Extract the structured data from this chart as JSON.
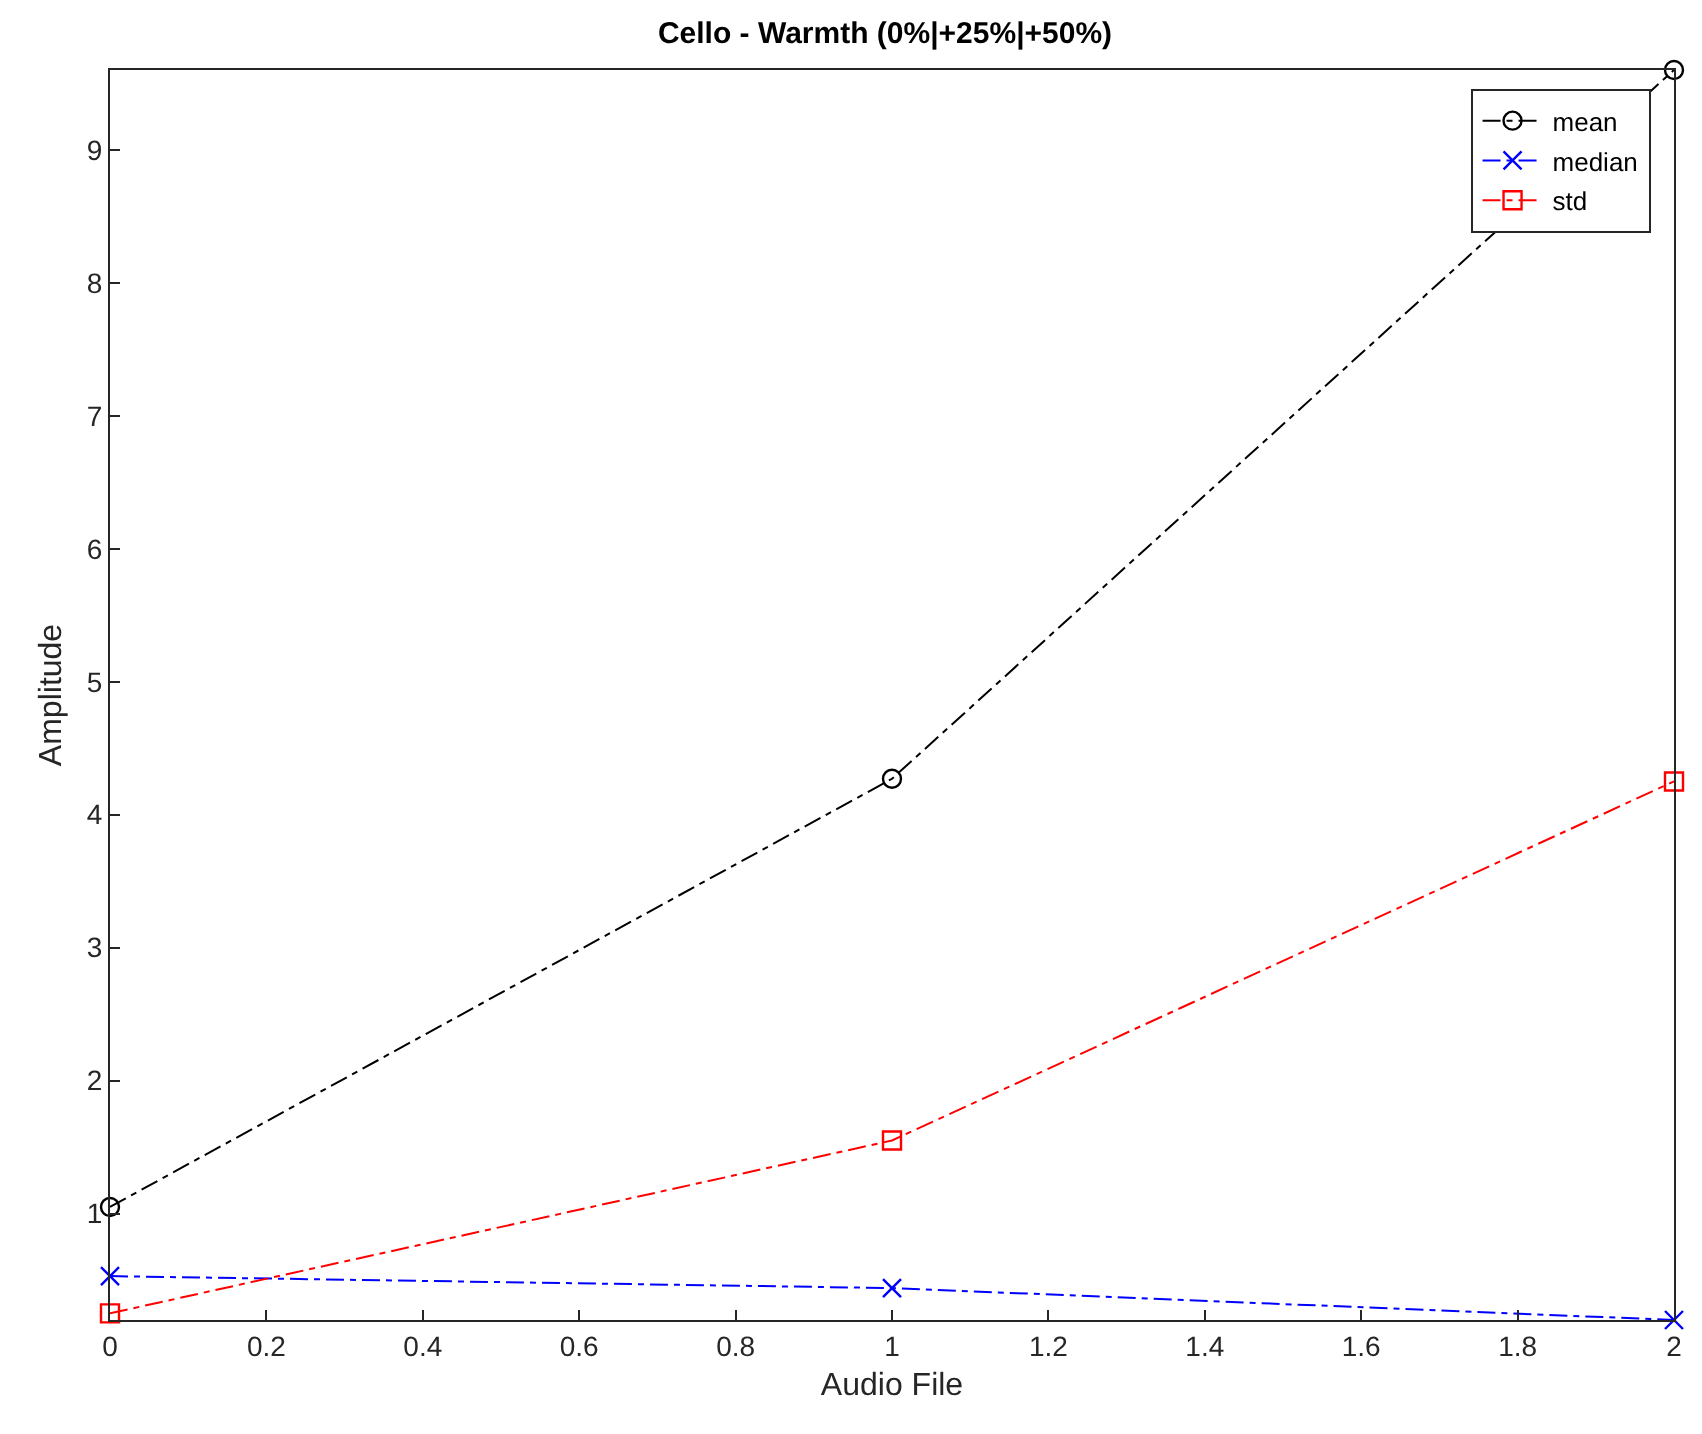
{
  "chart_data": {
    "type": "line",
    "title": "Cello - Warmth (0%|+25%|+50%)",
    "xlabel": "Audio File",
    "ylabel": "Amplitude",
    "x": [
      0,
      1,
      2
    ],
    "series": [
      {
        "name": "mean",
        "color": "#000000",
        "marker": "circle",
        "values": [
          1.05,
          4.27,
          9.6
        ]
      },
      {
        "name": "median",
        "color": "#0000ff",
        "marker": "cross",
        "values": [
          0.53,
          0.44,
          0.2
        ]
      },
      {
        "name": "std",
        "color": "#ff0000",
        "marker": "square",
        "values": [
          0.25,
          1.55,
          4.25
        ]
      }
    ],
    "xlim": [
      0,
      2
    ],
    "xticks": [
      0,
      0.2,
      0.4,
      0.6,
      0.8,
      1,
      1.2,
      1.4,
      1.6,
      1.8,
      2
    ],
    "ylim": [
      0.2,
      9.6
    ],
    "yticks": [
      1,
      2,
      3,
      4,
      5,
      6,
      7,
      8,
      9
    ],
    "line_style": "dashed",
    "legend": "top right"
  }
}
